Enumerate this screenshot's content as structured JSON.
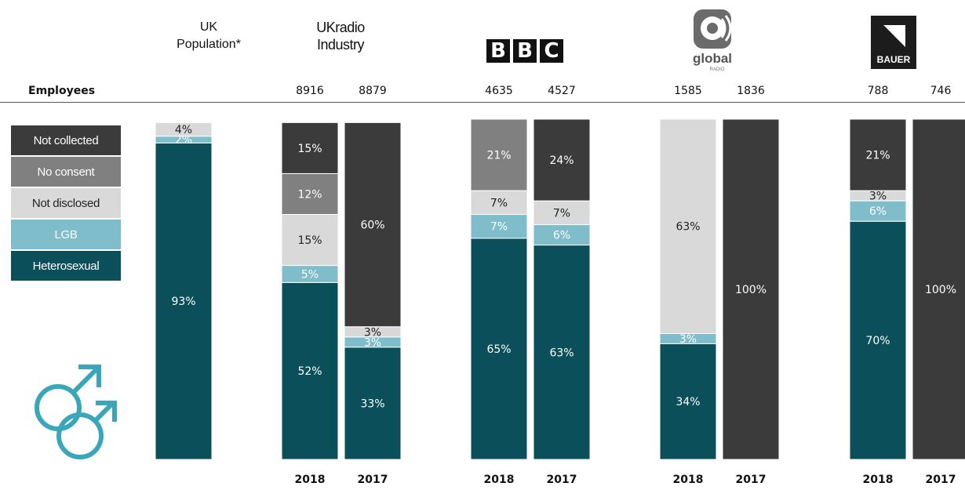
{
  "colors": {
    "Heterosexual": "#0b4f5a",
    "LGB": "#7fbdcb",
    "Not disclosed": "#d9d9d9",
    "No consent": "#808080",
    "Not collected": "#3b3b3b",
    "icon": "#3aa6b9"
  },
  "header": {
    "uk_population": "UK\nPopulation*",
    "uk_radio_industry": "UKradio\nIndustry",
    "employees_label": "Employees"
  },
  "logos": {
    "bbc": [
      "B",
      "B",
      "C"
    ],
    "global_text": "global",
    "global_sub": "RADIO",
    "bauer_text": "BAUER"
  },
  "icon_name": "male-male-gender-icon",
  "legend": [
    "Not collected",
    "No consent",
    "Not disclosed",
    "LGB",
    "Heterosexual"
  ],
  "chart_data": {
    "type": "bar",
    "stacked": true,
    "percent_stacked": true,
    "series_order": [
      "Heterosexual",
      "LGB",
      "Not disclosed",
      "No consent",
      "Not collected"
    ],
    "ylim": [
      0,
      100
    ],
    "bars": [
      {
        "group": "UK Population*",
        "year": "",
        "employees": "",
        "values": {
          "Heterosexual": 93,
          "LGB": 2,
          "Not disclosed": 4,
          "No consent": 0,
          "Not collected": 0
        }
      },
      {
        "group": "UK radio Industry",
        "year": "2018",
        "employees": "8916",
        "values": {
          "Heterosexual": 52,
          "LGB": 5,
          "Not disclosed": 15,
          "No consent": 12,
          "Not collected": 15
        }
      },
      {
        "group": "UK radio Industry",
        "year": "2017",
        "employees": "8879",
        "values": {
          "Heterosexual": 33,
          "LGB": 3,
          "Not disclosed": 3,
          "No consent": 0,
          "Not collected": 60
        }
      },
      {
        "group": "BBC",
        "year": "2018",
        "employees": "4635",
        "values": {
          "Heterosexual": 65,
          "LGB": 7,
          "Not disclosed": 7,
          "No consent": 21,
          "Not collected": 0
        }
      },
      {
        "group": "BBC",
        "year": "2017",
        "employees": "4527",
        "values": {
          "Heterosexual": 63,
          "LGB": 6,
          "Not disclosed": 7,
          "No consent": 0,
          "Not collected": 24
        }
      },
      {
        "group": "Global",
        "year": "2018",
        "employees": "1585",
        "values": {
          "Heterosexual": 34,
          "LGB": 3,
          "Not disclosed": 63,
          "No consent": 0,
          "Not collected": 0
        }
      },
      {
        "group": "Global",
        "year": "2017",
        "employees": "1836",
        "values": {
          "Heterosexual": 0,
          "LGB": 0,
          "Not disclosed": 0,
          "No consent": 0,
          "Not collected": 100
        }
      },
      {
        "group": "Bauer",
        "year": "2018",
        "employees": "788",
        "values": {
          "Heterosexual": 70,
          "LGB": 6,
          "Not disclosed": 3,
          "No consent": 0,
          "Not collected": 21
        }
      },
      {
        "group": "Bauer",
        "year": "2017",
        "employees": "746",
        "values": {
          "Heterosexual": 0,
          "LGB": 0,
          "Not disclosed": 0,
          "No consent": 0,
          "Not collected": 100
        }
      }
    ]
  }
}
